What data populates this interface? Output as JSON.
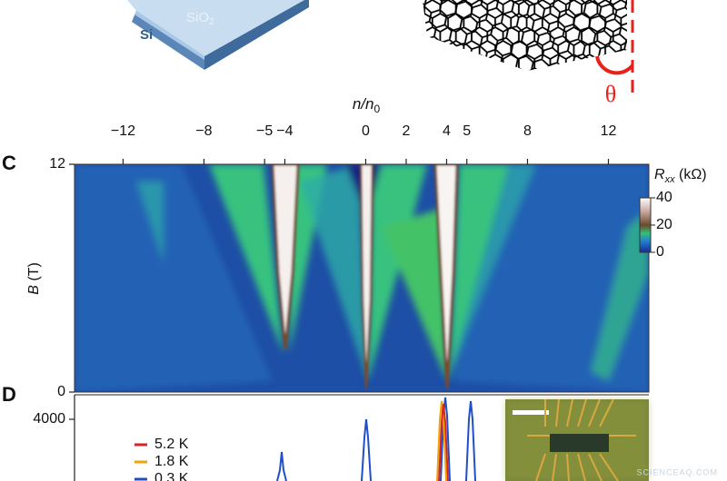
{
  "figure": {
    "panel_a": {
      "layer_top": {
        "main": "SiO",
        "sub": "2"
      },
      "layer_bottom": "Si"
    },
    "panel_b": {
      "angle": "θ"
    },
    "panel_c": {
      "label": "C",
      "x_label": {
        "main": "n/n",
        "sub": "0"
      },
      "y_label": {
        "main": "B",
        "unit": " (T)"
      },
      "xlim": [
        -14.4,
        14
      ],
      "xticks": [
        {
          "value": -12,
          "label": "−12"
        },
        {
          "value": -8,
          "label": "−8"
        },
        {
          "value": -5,
          "label": "−5"
        },
        {
          "value": -4,
          "label": "−4"
        },
        0,
        2,
        4,
        5,
        8,
        12
      ],
      "ylim": [
        0,
        12
      ],
      "yticks": [
        0,
        12
      ],
      "colorbar": {
        "label": {
          "main": "R",
          "sub": "xx",
          "unit": " (kΩ)"
        },
        "lim": [
          0,
          40
        ],
        "ticks": [
          0,
          20,
          40
        ]
      }
    },
    "panel_d": {
      "label": "D",
      "ylim": [
        0,
        5000
      ],
      "yticks": [
        4000
      ],
      "series": [
        {
          "name": "5.2 K",
          "color": "#d62728"
        },
        {
          "name": "1.8 K",
          "color": "#f0a30a"
        },
        {
          "name": "0.3 K",
          "color": "#1f4fc8"
        }
      ]
    },
    "watermark": "SCIENCEAQ.COM"
  }
}
